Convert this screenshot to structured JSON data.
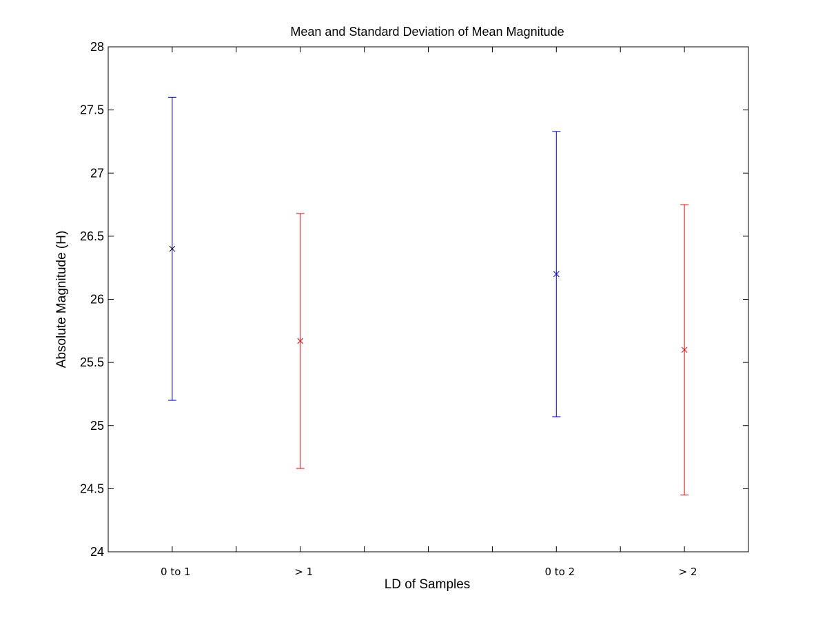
{
  "chart_data": {
    "type": "errorbar",
    "title": "Mean and Standard Deviation of Mean Magnitude",
    "xlabel": "LD of Samples",
    "ylabel": "Absolute Magnitude (H)",
    "ylim": [
      24,
      28
    ],
    "xlim": [
      0.5,
      5.5
    ],
    "y_ticks": [
      24,
      24.5,
      25,
      25.5,
      26,
      26.5,
      27,
      27.5,
      28
    ],
    "y_tick_labels": [
      "24",
      "24.5",
      "25",
      "25.5",
      "26",
      "26.5",
      "27",
      "27.5",
      "28"
    ],
    "x_ticks": [
      1,
      1.5,
      2,
      2.5,
      3,
      3.5,
      4,
      4.5,
      5
    ],
    "grid": false,
    "categories": [
      {
        "label": "0 to 1",
        "x": 1
      },
      {
        "label": "> 1",
        "x": 2
      },
      {
        "label": "0 to 2",
        "x": 4
      },
      {
        "label": "> 2",
        "x": 5
      }
    ],
    "points": [
      {
        "x": 1,
        "mean": 26.4,
        "low": 25.2,
        "high": 27.6,
        "bar_color": "#0000ff",
        "marker_color": "#000000"
      },
      {
        "x": 2,
        "mean": 25.67,
        "low": 24.66,
        "high": 26.68,
        "bar_color": "#ff0000",
        "marker_color": "#ff0000"
      },
      {
        "x": 4,
        "mean": 26.2,
        "low": 25.07,
        "high": 27.33,
        "bar_color": "#0000ff",
        "marker_color": "#0000ff"
      },
      {
        "x": 5,
        "mean": 25.6,
        "low": 24.45,
        "high": 26.75,
        "bar_color": "#ff0000",
        "marker_color": "#ff0000"
      }
    ],
    "marker": "x"
  }
}
